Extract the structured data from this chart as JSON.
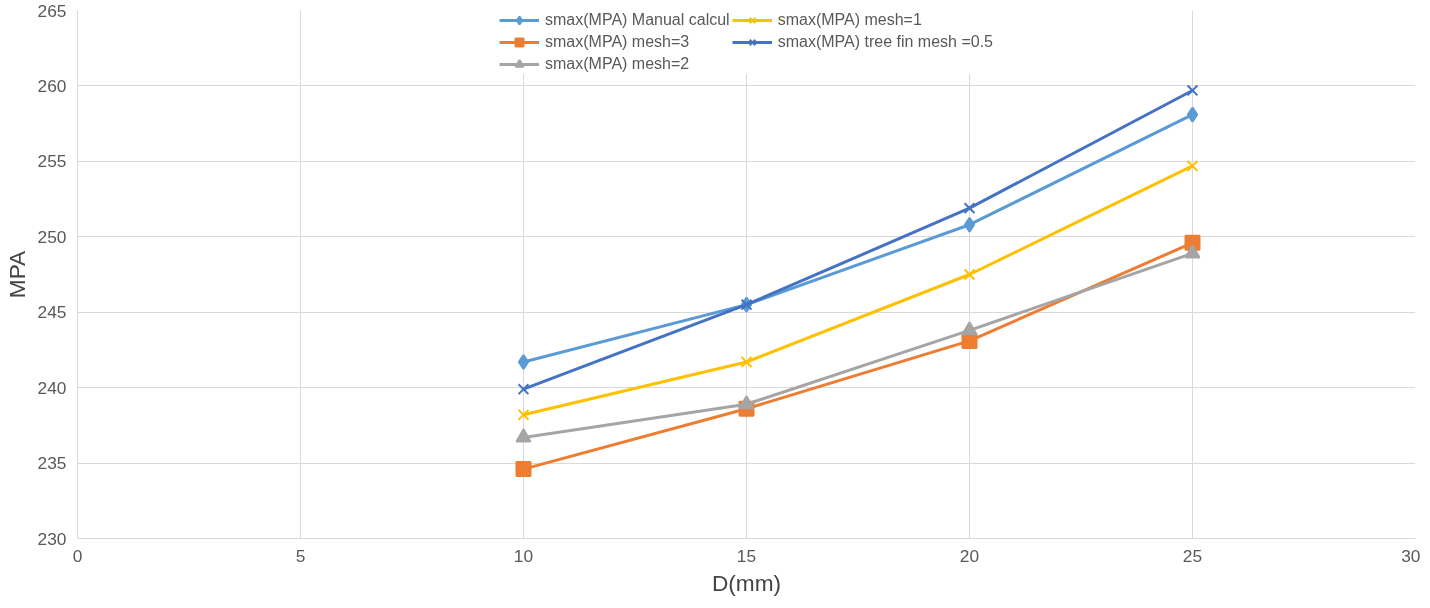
{
  "chart_data": {
    "type": "line",
    "xlabel": "D(mm)",
    "ylabel": "MPA",
    "x": [
      10,
      15,
      20,
      25
    ],
    "xlim": [
      0,
      30
    ],
    "xticks": [
      0,
      5,
      10,
      15,
      20,
      25,
      30
    ],
    "ylim": [
      230,
      265
    ],
    "yticks": [
      230,
      235,
      240,
      245,
      250,
      255,
      260,
      265
    ],
    "grid": true,
    "legend": "top",
    "line_style": "solid",
    "series": [
      {
        "name": "smax(MPA) Manual calcul",
        "color": "#5b9bd5",
        "marker": "diamond",
        "values": [
          241.7,
          245.5,
          250.8,
          258.1
        ]
      },
      {
        "name": "smax(MPA) mesh=3",
        "color": "#ed7d31",
        "marker": "square",
        "values": [
          234.6,
          238.6,
          243.1,
          249.6
        ]
      },
      {
        "name": "smax(MPA) mesh=2",
        "color": "#a5a5a5",
        "marker": "triangle",
        "values": [
          236.7,
          238.9,
          243.8,
          248.9
        ]
      },
      {
        "name": "smax(MPA) mesh=1",
        "color": "#ffc000",
        "marker": "cross",
        "values": [
          238.2,
          241.7,
          247.5,
          254.7
        ]
      },
      {
        "name": "smax(MPA) tree fin mesh =0.5",
        "color": "#4472c4",
        "marker": "cross",
        "values": [
          239.9,
          245.5,
          251.9,
          259.7
        ]
      }
    ]
  }
}
